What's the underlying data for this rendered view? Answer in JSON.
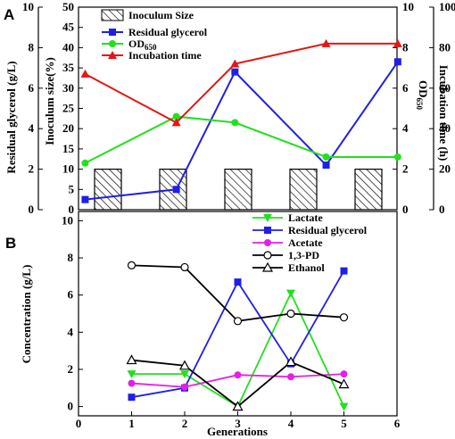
{
  "chart_data": [
    {
      "panel_label": "A",
      "type": "bar+line",
      "axes": {
        "left_outer": {
          "label": "Residual glycerol (g/L)",
          "range": [
            0,
            10
          ],
          "ticks": [
            "0",
            "2",
            "4",
            "6",
            "8",
            "10"
          ]
        },
        "left_inner": {
          "label": "Inoculum size(%)",
          "range": [
            0,
            50
          ],
          "ticks": [
            "0",
            "5",
            "10",
            "15",
            "20",
            "25",
            "30",
            "35",
            "40",
            "45",
            "50"
          ]
        },
        "right_inner": {
          "label": "OD650",
          "label_main": "OD",
          "label_sub": "650",
          "range": [
            0,
            10
          ],
          "ticks": [
            "0",
            "2",
            "4",
            "6",
            "8",
            "10"
          ]
        },
        "right_outer": {
          "label": "Incubation time (h)",
          "range": [
            0,
            100
          ],
          "ticks": [
            "0",
            "20",
            "40",
            "60",
            "80",
            "100"
          ]
        }
      },
      "x": [
        1,
        2,
        3,
        4,
        5
      ],
      "series": [
        {
          "name": "Inoculum Size",
          "kind": "bar",
          "axis": "left_inner",
          "values": [
            10,
            10,
            10,
            10,
            10
          ],
          "color": "#000000",
          "pattern": "hatch"
        },
        {
          "name": "Residual glycerol",
          "kind": "line",
          "axis": "left_outer",
          "x_shift": [
            -0.35,
            0.05,
            -0.05,
            0.35,
            0.45
          ],
          "values": [
            0.5,
            1.0,
            6.8,
            2.2,
            7.3
          ],
          "color": "#1f1fe6",
          "marker": "square"
        },
        {
          "name": "OD650",
          "name_main": "OD",
          "name_sub": "650",
          "kind": "line",
          "axis": "right_inner",
          "x_shift": [
            -0.35,
            0.05,
            -0.05,
            0.35,
            0.45
          ],
          "values": [
            2.3,
            4.6,
            4.3,
            2.6,
            2.6
          ],
          "color": "#22e01e",
          "marker": "circle"
        },
        {
          "name": "Incubation time",
          "kind": "line",
          "axis": "right_outer",
          "x_shift": [
            -0.35,
            0.05,
            -0.05,
            0.35,
            0.45
          ],
          "values": [
            67,
            43,
            72,
            82,
            82
          ],
          "color": "#e61515",
          "marker": "triangle"
        }
      ],
      "legend": {
        "placement": "top-left"
      }
    },
    {
      "panel_label": "B",
      "type": "line",
      "xlabel": "Generations",
      "ylabel": "Concentration (g/L)",
      "xlim": [
        0,
        6
      ],
      "ylim": [
        -0.5,
        10.5
      ],
      "xticks": [
        "0",
        "1",
        "2",
        "3",
        "4",
        "5",
        "6"
      ],
      "yticks": [
        "0",
        "2",
        "4",
        "6",
        "8",
        "10"
      ],
      "x": [
        1,
        2,
        3,
        4,
        5
      ],
      "series": [
        {
          "name": "Lactate",
          "values": [
            1.75,
            1.75,
            0.0,
            6.1,
            0.0
          ],
          "color": "#22e01e",
          "marker": "triangle-down"
        },
        {
          "name": "Residual glycerol",
          "values": [
            0.5,
            1.0,
            6.7,
            2.3,
            7.3
          ],
          "color": "#1f1fe6",
          "marker": "square"
        },
        {
          "name": "Acetate",
          "values": [
            1.25,
            1.05,
            1.7,
            1.6,
            1.75
          ],
          "color": "#e61ee6",
          "marker": "circle"
        },
        {
          "name": "1,3-PD",
          "values": [
            7.6,
            7.5,
            4.6,
            5.0,
            4.8
          ],
          "color": "#000000",
          "marker": "circle-open"
        },
        {
          "name": "Ethanol",
          "values": [
            2.5,
            2.2,
            0.0,
            2.4,
            1.2
          ],
          "color": "#000000",
          "marker": "triangle-open"
        }
      ],
      "legend": {
        "placement": "top-right"
      }
    }
  ]
}
